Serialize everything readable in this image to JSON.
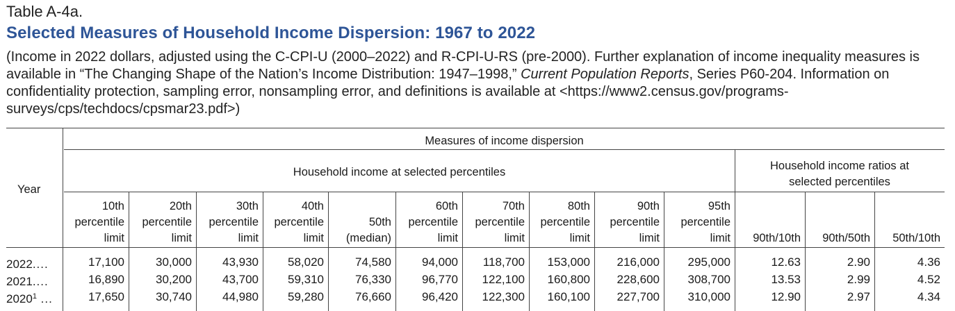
{
  "header": {
    "table_label": "Table A-4a.",
    "title": "Selected Measures of Household Income Dispersion: 1967 to 2022",
    "desc_part1": "(Income in 2022 dollars, adjusted using the C-CPI-U (2000–2022) and R-CPI-U-RS (pre-2000). Further explanation of income inequality measures is available in “The Changing Shape of the Nation’s Income Distribution: 1947–1998,” ",
    "desc_italic": "Current Population Reports",
    "desc_part2": ", Series P60-204. Information on confidentiality protection, sampling error, nonsampling error, and definitions is available at <https://www2.census.gov/programs-surveys/cps/techdocs/cpsmar23.pdf>)"
  },
  "table": {
    "year_header": "Year",
    "group_header": "Measures of income dispersion",
    "subgroup_percentiles": "Household income at selected percentiles",
    "subgroup_ratios_line1": "Household income ratios at",
    "subgroup_ratios_line2": "selected percentiles",
    "columns": [
      {
        "l1": "10th",
        "l2": "percentile",
        "l3": "limit"
      },
      {
        "l1": "20th",
        "l2": "percentile",
        "l3": "limit"
      },
      {
        "l1": "30th",
        "l2": "percentile",
        "l3": "limit"
      },
      {
        "l1": "40th",
        "l2": "percentile",
        "l3": "limit"
      },
      {
        "l1": "",
        "l2": "50th",
        "l3": "(median)"
      },
      {
        "l1": "60th",
        "l2": "percentile",
        "l3": "limit"
      },
      {
        "l1": "70th",
        "l2": "percentile",
        "l3": "limit"
      },
      {
        "l1": "80th",
        "l2": "percentile",
        "l3": "limit"
      },
      {
        "l1": "90th",
        "l2": "percentile",
        "l3": "limit"
      },
      {
        "l1": "95th",
        "l2": "percentile",
        "l3": "limit"
      },
      {
        "l1": "",
        "l2": "",
        "l3": "90th/10th"
      },
      {
        "l1": "",
        "l2": "",
        "l3": "90th/50th"
      },
      {
        "l1": "",
        "l2": "",
        "l3": "50th/10th"
      }
    ],
    "rows": [
      {
        "year": "2022",
        "sup": "",
        "dots": "....",
        "values": [
          "17,100",
          "30,000",
          "43,930",
          "58,020",
          "74,580",
          "94,000",
          "118,700",
          "153,000",
          "216,000",
          "295,000",
          "12.63",
          "2.90",
          "4.36"
        ]
      },
      {
        "year": "2021",
        "sup": "",
        "dots": "....",
        "values": [
          "16,890",
          "30,200",
          "43,700",
          "59,310",
          "76,330",
          "96,770",
          "122,100",
          "160,800",
          "228,600",
          "308,700",
          "13.53",
          "2.99",
          "4.52"
        ]
      },
      {
        "year": "2020",
        "sup": "1",
        "dots": " ...",
        "values": [
          "17,650",
          "30,740",
          "44,980",
          "59,280",
          "76,660",
          "96,420",
          "122,300",
          "160,100",
          "227,700",
          "310,000",
          "12.90",
          "2.97",
          "4.34"
        ]
      }
    ]
  }
}
